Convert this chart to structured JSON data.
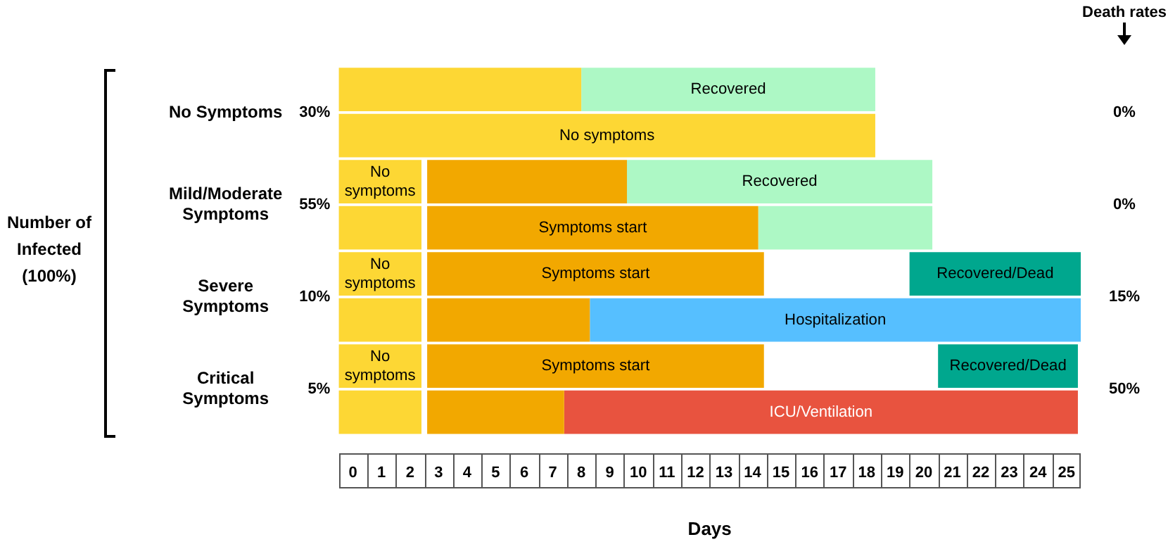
{
  "chart_data": {
    "type": "bar",
    "orientation": "horizontal",
    "xlabel": "Days",
    "ylabel": "Number of Infected (100%)",
    "categories": [
      "No Symptoms",
      null,
      "Mild/Moderate Symptoms",
      null,
      "Severe Symptoms",
      null,
      "Critical Symptoms",
      null
    ],
    "series": [
      {
        "color": "#fdd734",
        "base": [
          0,
          0,
          0,
          0,
          0,
          0,
          0,
          0
        ],
        "values": [
          8.5,
          18.8,
          2.9,
          2.9,
          2.9,
          2.9,
          2.9,
          2.9
        ],
        "value_labels": [
          null,
          "No symptoms",
          "No symptoms",
          null,
          "No symptoms",
          null,
          "No symptoms",
          null
        ]
      },
      {
        "color": "#f2a800",
        "base": [
          null,
          null,
          3.1,
          3.1,
          3.1,
          3.1,
          3.1,
          3.1
        ],
        "values": [
          null,
          null,
          7.0,
          11.6,
          11.8,
          5.7,
          11.8,
          4.8
        ],
        "value_labels": [
          null,
          null,
          null,
          "Symptoms start",
          "Symptoms start",
          null,
          "Symptoms start",
          null
        ]
      },
      {
        "color": "#adf8c5",
        "base": [
          8.5,
          null,
          10.1,
          14.7,
          null,
          null,
          null,
          null
        ],
        "values": [
          10.3,
          null,
          10.7,
          6.1,
          null,
          null,
          null,
          null
        ],
        "value_labels": [
          "Recovered",
          null,
          "Recovered",
          null,
          null,
          null,
          null,
          null
        ]
      },
      {
        "color": "#00a78e",
        "base": [
          null,
          null,
          null,
          null,
          20,
          null,
          21,
          null
        ],
        "values": [
          null,
          null,
          null,
          null,
          6,
          null,
          4.9,
          null
        ],
        "value_labels": [
          null,
          null,
          null,
          null,
          "Recovered/Dead",
          null,
          "Recovered/Dead",
          null
        ]
      },
      {
        "color": "#56bfff",
        "base": [
          null,
          null,
          null,
          null,
          null,
          8.8,
          null,
          null
        ],
        "values": [
          null,
          null,
          null,
          null,
          null,
          17.2,
          null,
          null
        ],
        "value_labels": [
          null,
          null,
          null,
          null,
          null,
          "Hospitalization",
          null,
          null
        ]
      },
      {
        "color": "#e8533f",
        "base": [
          null,
          null,
          null,
          null,
          null,
          null,
          null,
          7.9
        ],
        "values": [
          null,
          null,
          null,
          null,
          null,
          null,
          null,
          18
        ],
        "value_labels": [
          null,
          null,
          null,
          null,
          null,
          null,
          null,
          "ICU/Ventilation"
        ]
      }
    ],
    "xlim": [
      0,
      26
    ],
    "xticks": [
      {
        "value": 0.5,
        "label": "0"
      },
      {
        "value": 1.5,
        "label": "1"
      },
      {
        "value": 2.5,
        "label": "2"
      },
      {
        "value": 3.5,
        "label": "3"
      },
      {
        "value": 4.5,
        "label": "4"
      },
      {
        "value": 5.5,
        "label": "5"
      },
      {
        "value": 6.5,
        "label": "6"
      },
      {
        "value": 7.5,
        "label": "7"
      },
      {
        "value": 8.5,
        "label": "8"
      },
      {
        "value": 9.5,
        "label": "9"
      },
      {
        "value": 10.5,
        "label": "10"
      },
      {
        "value": 11.5,
        "label": "11"
      },
      {
        "value": 12.5,
        "label": "12"
      },
      {
        "value": 13.5,
        "label": "13"
      },
      {
        "value": 14.5,
        "label": "14"
      },
      {
        "value": 15.5,
        "label": "15"
      },
      {
        "value": 16.5,
        "label": "16"
      },
      {
        "value": 17.5,
        "label": "17"
      },
      {
        "value": 18.5,
        "label": "18"
      },
      {
        "value": 19.5,
        "label": "19"
      },
      {
        "value": 20.5,
        "label": "20"
      },
      {
        "value": 21.5,
        "label": "21"
      },
      {
        "value": 22.5,
        "label": "22"
      },
      {
        "value": 23.5,
        "label": "23"
      },
      {
        "value": 24.5,
        "label": "24"
      },
      {
        "value": 25.5,
        "label": "25"
      }
    ],
    "annotations": [
      "30%",
      "55%",
      "10%",
      "5%",
      "Death rates",
      "0%",
      "0%",
      "15%",
      "50%"
    ],
    "grid": false,
    "legend": false
  }
}
